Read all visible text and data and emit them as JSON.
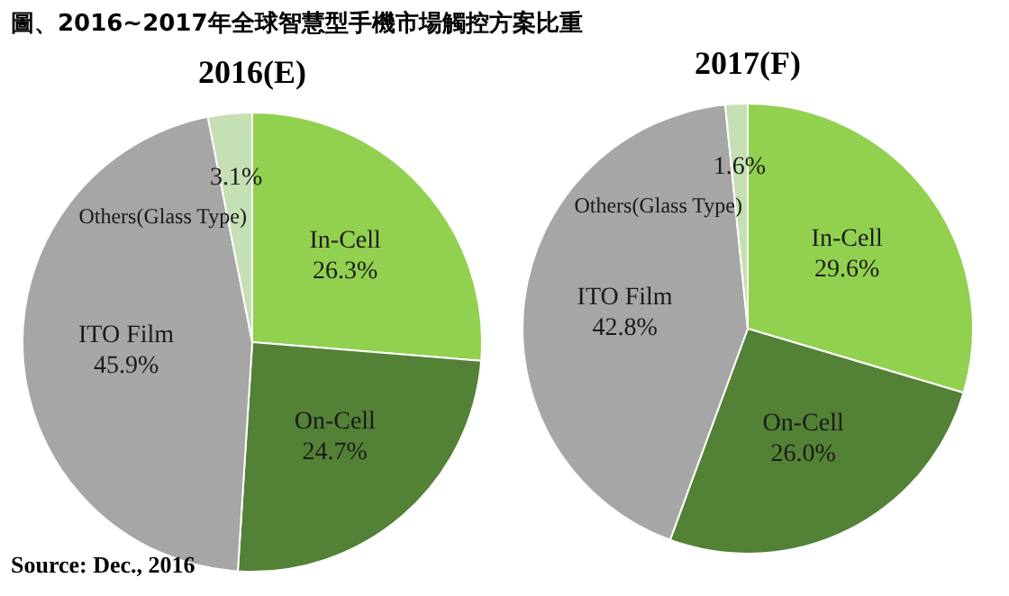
{
  "chart_data": [
    {
      "type": "other",
      "title": "圖、2016~2017年全球智慧型手機市場觸控方案比重"
    },
    {
      "type": "pie",
      "title": "2016(E)",
      "categories": [
        "In-Cell",
        "On-Cell",
        "ITO Film",
        "Others(Glass Type)"
      ],
      "values": [
        26.3,
        24.7,
        45.9,
        3.1
      ],
      "value_labels": [
        "26.3%",
        "24.7%",
        "45.9%",
        "3.1%"
      ],
      "colors": [
        "#92d050",
        "#538135",
        "#a6a6a6",
        "#c5e0b4"
      ],
      "legend": false
    },
    {
      "type": "pie",
      "title": "2017(F)",
      "categories": [
        "In-Cell",
        "On-Cell",
        "ITO Film",
        "Others(Glass Type)"
      ],
      "values": [
        29.6,
        26.0,
        42.8,
        1.6
      ],
      "value_labels": [
        "29.6%",
        "26.0%",
        "42.8%",
        "1.6%"
      ],
      "colors": [
        "#92d050",
        "#538135",
        "#a6a6a6",
        "#c5e0b4"
      ],
      "legend": false
    },
    {
      "type": "other",
      "annotations": [
        "Source: Dec., 2016"
      ]
    }
  ]
}
